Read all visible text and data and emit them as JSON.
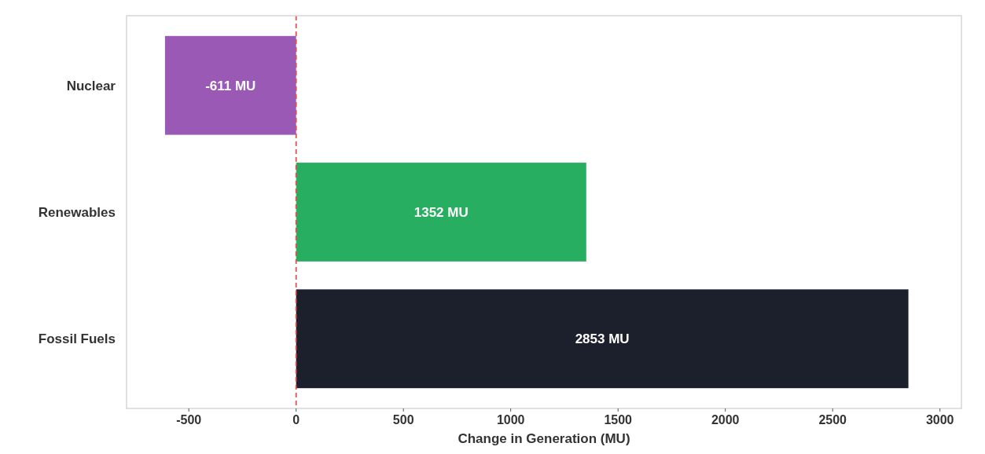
{
  "chart_data": {
    "type": "bar",
    "orientation": "horizontal",
    "categories": [
      "Nuclear",
      "Renewables",
      "Fossil Fuels"
    ],
    "values": [
      -611,
      1352,
      2853
    ],
    "colors": [
      "#9b59b6",
      "#27ae60",
      "#1b202c"
    ],
    "value_labels": [
      "-611 MU",
      "1352 MU",
      "2853 MU"
    ],
    "xlabel": "Change in Generation (MU)",
    "xlim": [
      -790,
      3100
    ],
    "xticks": [
      -500,
      0,
      500,
      1000,
      1500,
      2000,
      2500,
      3000
    ],
    "ref_lines": [
      {
        "axis": "x",
        "value": 0,
        "color": "#d9534f",
        "line_style": "dashed"
      }
    ],
    "grid": false
  }
}
